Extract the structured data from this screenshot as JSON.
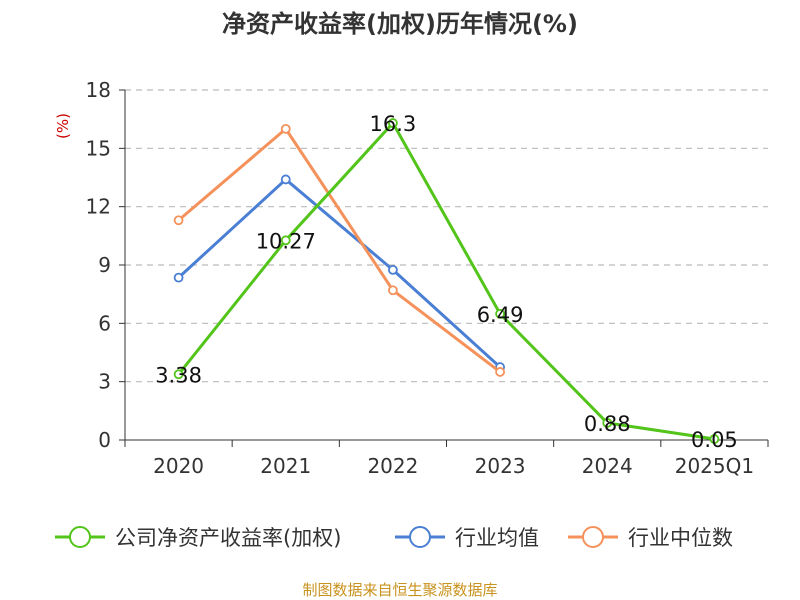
{
  "chart_data": {
    "type": "line",
    "title": "净资产收益率(加权)历年情况(%)",
    "ylabel": "(%)",
    "xlabel": "",
    "categories": [
      "2020",
      "2021",
      "2022",
      "2023",
      "2024",
      "2025Q1"
    ],
    "ylim": [
      0,
      18
    ],
    "yticks": [
      0,
      3,
      6,
      9,
      12,
      15,
      18
    ],
    "grid": true,
    "legend_position": "bottom",
    "series": [
      {
        "name": "公司净资产收益率(加权)",
        "color": "#52c41a",
        "values": [
          3.38,
          10.27,
          16.3,
          6.49,
          0.88,
          0.05
        ],
        "labels": [
          "3.38",
          "10.27",
          "16.3",
          "6.49",
          "0.88",
          "0.05"
        ]
      },
      {
        "name": "行业均值",
        "color": "#4a7fd4",
        "values": [
          8.35,
          13.4,
          8.75,
          3.75,
          null,
          null
        ]
      },
      {
        "name": "行业中位数",
        "color": "#f5915a",
        "values": [
          11.3,
          16.0,
          7.7,
          3.5,
          null,
          null
        ]
      }
    ]
  },
  "source_note": "制图数据来自恒生聚源数据库",
  "colors": {
    "title": "#333333",
    "axis_text": "#333333",
    "ylabel": "#cc0000",
    "grid": "#bbbbbb",
    "source": "#c8921e"
  }
}
